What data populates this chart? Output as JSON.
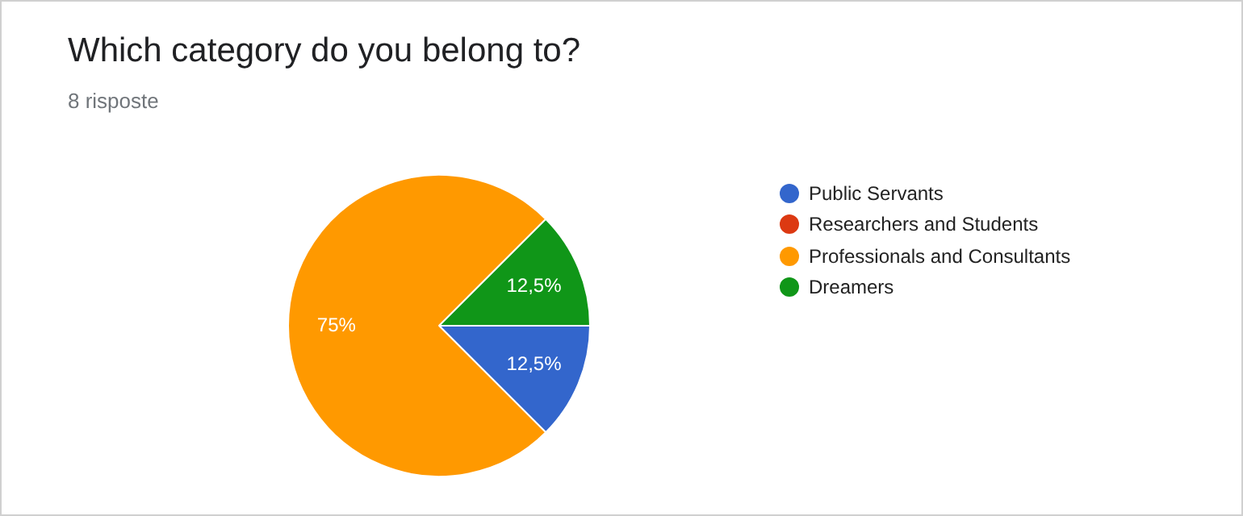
{
  "chart_data": {
    "type": "pie",
    "title": "Which category do you belong to?",
    "subtitle": "8 risposte",
    "categories": [
      "Public Servants",
      "Researchers and Students",
      "Professionals and Consultants",
      "Dreamers"
    ],
    "values": [
      12.5,
      0,
      75,
      12.5
    ],
    "value_labels": [
      "12,5%",
      null,
      "75%",
      "12,5%"
    ],
    "colors": [
      "#3366cc",
      "#dc3912",
      "#ff9900",
      "#109618"
    ],
    "legend": "right"
  }
}
